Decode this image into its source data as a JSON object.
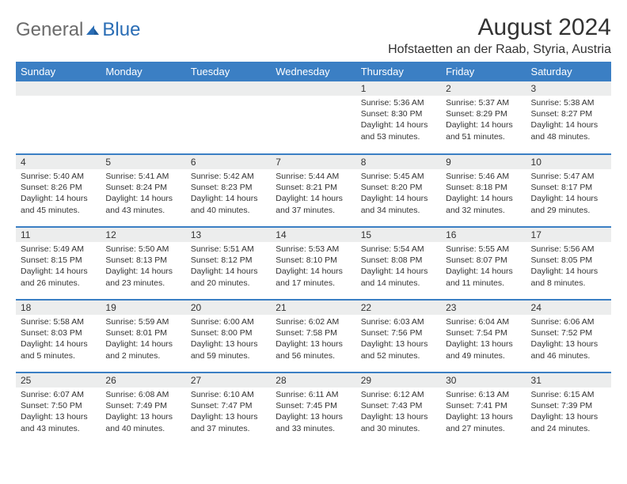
{
  "brand": {
    "text1": "General",
    "text2": "Blue"
  },
  "title": "August 2024",
  "location": "Hofstaetten an der Raab, Styria, Austria",
  "colors": {
    "header_bg": "#3b7fc4",
    "header_text": "#ffffff",
    "daynum_bg": "#eceded",
    "border": "#3b7fc4",
    "logo_gray": "#6b6b6b",
    "logo_blue": "#2a6db5"
  },
  "weekdays": [
    "Sunday",
    "Monday",
    "Tuesday",
    "Wednesday",
    "Thursday",
    "Friday",
    "Saturday"
  ],
  "weeks": [
    [
      null,
      null,
      null,
      null,
      {
        "d": "1",
        "sr": "5:36 AM",
        "ss": "8:30 PM",
        "dl": "14 hours and 53 minutes."
      },
      {
        "d": "2",
        "sr": "5:37 AM",
        "ss": "8:29 PM",
        "dl": "14 hours and 51 minutes."
      },
      {
        "d": "3",
        "sr": "5:38 AM",
        "ss": "8:27 PM",
        "dl": "14 hours and 48 minutes."
      }
    ],
    [
      {
        "d": "4",
        "sr": "5:40 AM",
        "ss": "8:26 PM",
        "dl": "14 hours and 45 minutes."
      },
      {
        "d": "5",
        "sr": "5:41 AM",
        "ss": "8:24 PM",
        "dl": "14 hours and 43 minutes."
      },
      {
        "d": "6",
        "sr": "5:42 AM",
        "ss": "8:23 PM",
        "dl": "14 hours and 40 minutes."
      },
      {
        "d": "7",
        "sr": "5:44 AM",
        "ss": "8:21 PM",
        "dl": "14 hours and 37 minutes."
      },
      {
        "d": "8",
        "sr": "5:45 AM",
        "ss": "8:20 PM",
        "dl": "14 hours and 34 minutes."
      },
      {
        "d": "9",
        "sr": "5:46 AM",
        "ss": "8:18 PM",
        "dl": "14 hours and 32 minutes."
      },
      {
        "d": "10",
        "sr": "5:47 AM",
        "ss": "8:17 PM",
        "dl": "14 hours and 29 minutes."
      }
    ],
    [
      {
        "d": "11",
        "sr": "5:49 AM",
        "ss": "8:15 PM",
        "dl": "14 hours and 26 minutes."
      },
      {
        "d": "12",
        "sr": "5:50 AM",
        "ss": "8:13 PM",
        "dl": "14 hours and 23 minutes."
      },
      {
        "d": "13",
        "sr": "5:51 AM",
        "ss": "8:12 PM",
        "dl": "14 hours and 20 minutes."
      },
      {
        "d": "14",
        "sr": "5:53 AM",
        "ss": "8:10 PM",
        "dl": "14 hours and 17 minutes."
      },
      {
        "d": "15",
        "sr": "5:54 AM",
        "ss": "8:08 PM",
        "dl": "14 hours and 14 minutes."
      },
      {
        "d": "16",
        "sr": "5:55 AM",
        "ss": "8:07 PM",
        "dl": "14 hours and 11 minutes."
      },
      {
        "d": "17",
        "sr": "5:56 AM",
        "ss": "8:05 PM",
        "dl": "14 hours and 8 minutes."
      }
    ],
    [
      {
        "d": "18",
        "sr": "5:58 AM",
        "ss": "8:03 PM",
        "dl": "14 hours and 5 minutes."
      },
      {
        "d": "19",
        "sr": "5:59 AM",
        "ss": "8:01 PM",
        "dl": "14 hours and 2 minutes."
      },
      {
        "d": "20",
        "sr": "6:00 AM",
        "ss": "8:00 PM",
        "dl": "13 hours and 59 minutes."
      },
      {
        "d": "21",
        "sr": "6:02 AM",
        "ss": "7:58 PM",
        "dl": "13 hours and 56 minutes."
      },
      {
        "d": "22",
        "sr": "6:03 AM",
        "ss": "7:56 PM",
        "dl": "13 hours and 52 minutes."
      },
      {
        "d": "23",
        "sr": "6:04 AM",
        "ss": "7:54 PM",
        "dl": "13 hours and 49 minutes."
      },
      {
        "d": "24",
        "sr": "6:06 AM",
        "ss": "7:52 PM",
        "dl": "13 hours and 46 minutes."
      }
    ],
    [
      {
        "d": "25",
        "sr": "6:07 AM",
        "ss": "7:50 PM",
        "dl": "13 hours and 43 minutes."
      },
      {
        "d": "26",
        "sr": "6:08 AM",
        "ss": "7:49 PM",
        "dl": "13 hours and 40 minutes."
      },
      {
        "d": "27",
        "sr": "6:10 AM",
        "ss": "7:47 PM",
        "dl": "13 hours and 37 minutes."
      },
      {
        "d": "28",
        "sr": "6:11 AM",
        "ss": "7:45 PM",
        "dl": "13 hours and 33 minutes."
      },
      {
        "d": "29",
        "sr": "6:12 AM",
        "ss": "7:43 PM",
        "dl": "13 hours and 30 minutes."
      },
      {
        "d": "30",
        "sr": "6:13 AM",
        "ss": "7:41 PM",
        "dl": "13 hours and 27 minutes."
      },
      {
        "d": "31",
        "sr": "6:15 AM",
        "ss": "7:39 PM",
        "dl": "13 hours and 24 minutes."
      }
    ]
  ],
  "labels": {
    "sunrise": "Sunrise: ",
    "sunset": "Sunset: ",
    "daylight": "Daylight: "
  }
}
